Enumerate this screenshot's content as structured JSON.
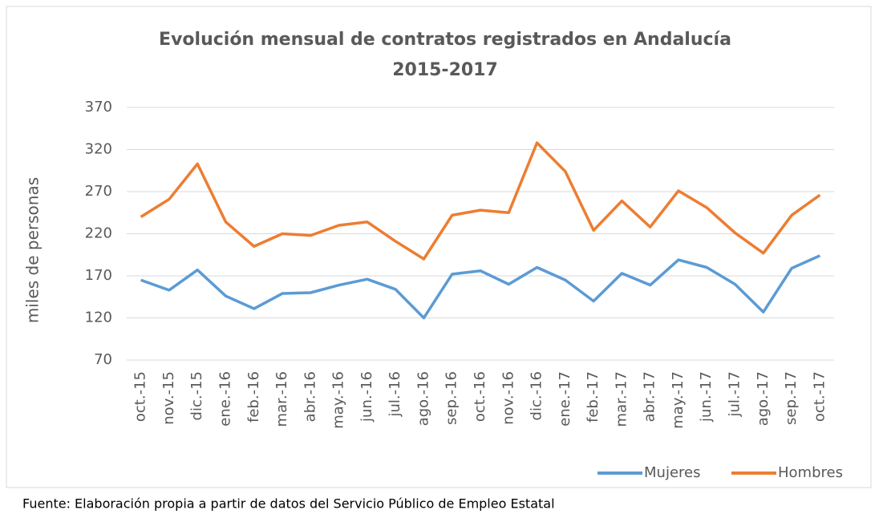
{
  "chart_data": {
    "type": "line",
    "title": [
      "Evolución mensual de contratos registrados en Andalucía",
      "2015-2017"
    ],
    "y_label": "miles de personas",
    "source": "Fuente: Elaboración propia a partir de datos del Servicio Público de Empleo Estatal",
    "categories": [
      "oct.-15",
      "nov.-15",
      "dic.-15",
      "ene.-16",
      "feb.-16",
      "mar.-16",
      "abr.-16",
      "may.-16",
      "jun.-16",
      "jul.-16",
      "ago.-16",
      "sep.-16",
      "oct.-16",
      "nov.-16",
      "dic.-16",
      "ene.-17",
      "feb.-17",
      "mar.-17",
      "abr.-17",
      "may.-17",
      "jun.-17",
      "jul.-17",
      "ago.-17",
      "sep.-17",
      "oct.-17"
    ],
    "series": [
      {
        "name": "Mujeres",
        "color": "#5b9bd5",
        "values": [
          165,
          153,
          177,
          146,
          131,
          149,
          150,
          159,
          166,
          154,
          120,
          172,
          176,
          160,
          180,
          165,
          140,
          173,
          159,
          189,
          180,
          160,
          127,
          179,
          194
        ]
      },
      {
        "name": "Hombres",
        "color": "#ed7d31",
        "values": [
          240,
          261,
          303,
          234,
          205,
          220,
          218,
          230,
          234,
          211,
          190,
          242,
          248,
          245,
          328,
          294,
          224,
          259,
          228,
          271,
          251,
          221,
          197,
          242,
          266
        ]
      }
    ],
    "ylim": [
      70,
      370
    ],
    "yticks": [
      70,
      120,
      170,
      220,
      270,
      320,
      370
    ],
    "grid": true,
    "legend": "bottom-right"
  }
}
